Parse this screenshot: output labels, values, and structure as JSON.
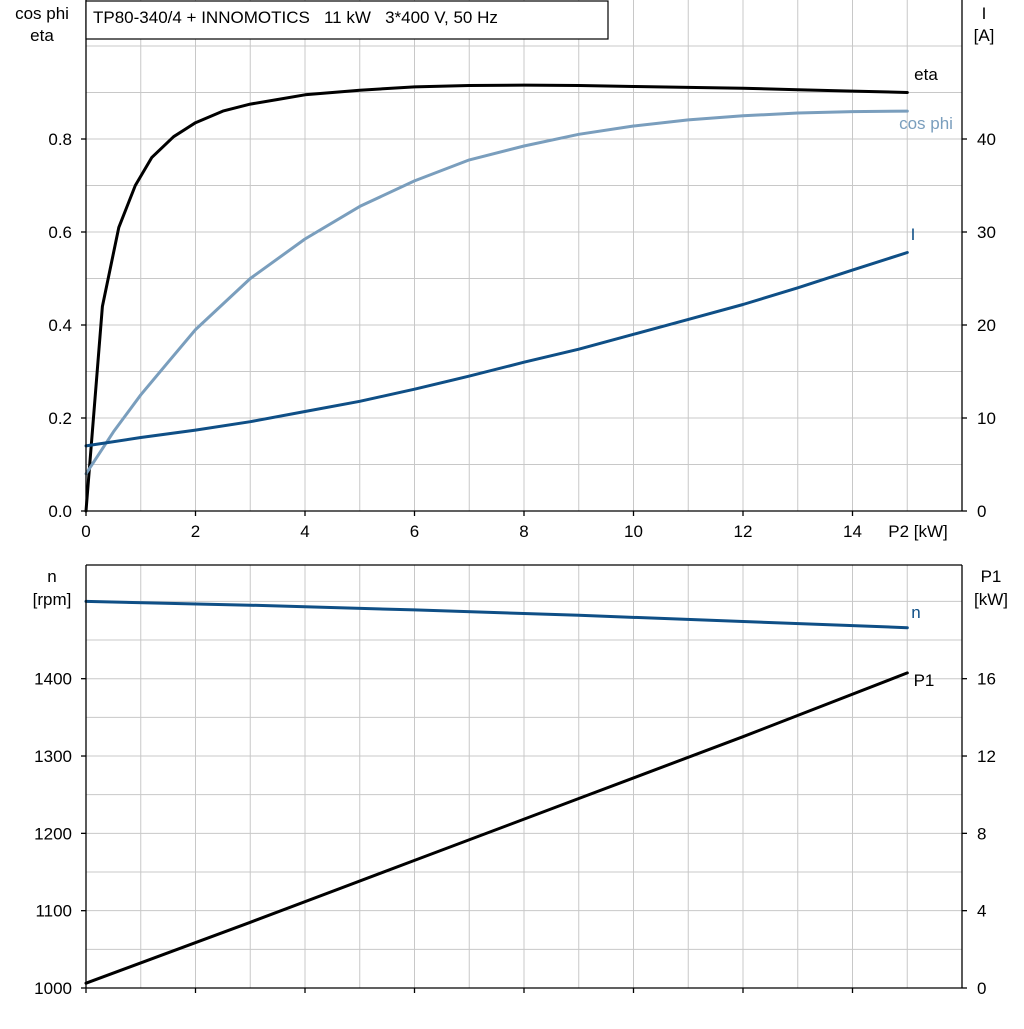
{
  "colors": {
    "eta": "#000000",
    "cos_phi": "#7a9ebd",
    "current": "#0f4f86",
    "speed": "#0f4f86",
    "p1": "#000000",
    "grid": "#c8c8c8"
  },
  "chart_data": [
    {
      "type": "line",
      "title": "TP80-340/4 + INNOMOTICS   11 kW   3*400 V, 50 Hz",
      "xlabel": "P2 [kW]",
      "ylabel_left": [
        "cos phi",
        "eta"
      ],
      "ylabel_right": [
        "I",
        "[A]"
      ],
      "xlim": [
        0,
        16
      ],
      "ylim_left": [
        0,
        1.0
      ],
      "ylim_right": [
        0,
        50
      ],
      "x_ticks": [
        0,
        2,
        4,
        6,
        8,
        10,
        12,
        14
      ],
      "x_tick_labels": [
        "0",
        "2",
        "4",
        "6",
        "8",
        "10",
        "12",
        "14"
      ],
      "y_left_ticks": [
        0.0,
        0.2,
        0.4,
        0.6,
        0.8
      ],
      "y_left_tick_labels": [
        "0.0",
        "0.2",
        "0.4",
        "0.6",
        "0.8"
      ],
      "y_right_ticks": [
        0,
        10,
        20,
        30,
        40
      ],
      "y_right_tick_labels": [
        "0",
        "10",
        "20",
        "30",
        "40"
      ],
      "grid": true,
      "series": [
        {
          "name": "eta",
          "axis": "left",
          "x": [
            0,
            0.3,
            0.6,
            0.9,
            1.2,
            1.6,
            2.0,
            2.5,
            3.0,
            3.5,
            4.0,
            5.0,
            6.0,
            7.0,
            8.0,
            9.0,
            10.0,
            11.0,
            12.0,
            13.0,
            14.0,
            15.0
          ],
          "y": [
            0,
            0.44,
            0.61,
            0.7,
            0.76,
            0.805,
            0.835,
            0.86,
            0.875,
            0.885,
            0.895,
            0.905,
            0.912,
            0.915,
            0.916,
            0.915,
            0.913,
            0.911,
            0.909,
            0.906,
            0.903,
            0.9
          ]
        },
        {
          "name": "cos phi",
          "axis": "left",
          "x": [
            0,
            0.5,
            1,
            1.5,
            2,
            3,
            4,
            5,
            6,
            7,
            8,
            9,
            10,
            11,
            12,
            13,
            14,
            15
          ],
          "y": [
            0.08,
            0.17,
            0.25,
            0.32,
            0.39,
            0.5,
            0.585,
            0.655,
            0.71,
            0.755,
            0.785,
            0.81,
            0.828,
            0.841,
            0.85,
            0.856,
            0.859,
            0.86
          ]
        },
        {
          "name": "I",
          "axis": "right",
          "x": [
            0,
            1,
            2,
            3,
            4,
            5,
            6,
            7,
            8,
            9,
            10,
            11,
            12,
            13,
            14,
            15
          ],
          "y": [
            7.0,
            7.9,
            8.7,
            9.6,
            10.7,
            11.8,
            13.1,
            14.5,
            16.0,
            17.4,
            19.0,
            20.6,
            22.2,
            24.0,
            25.9,
            27.8
          ]
        }
      ]
    },
    {
      "type": "line",
      "xlabel": "",
      "ylabel_left": [
        "n",
        "[rpm]"
      ],
      "ylabel_right": [
        "P1",
        "[kW]"
      ],
      "xlim": [
        0,
        16
      ],
      "ylim_left": [
        1000,
        1550
      ],
      "ylim_right": [
        0,
        22
      ],
      "x_ticks": [
        0,
        2,
        4,
        6,
        8,
        10,
        12,
        14
      ],
      "y_left_ticks": [
        1000,
        1100,
        1200,
        1300,
        1400
      ],
      "y_left_tick_labels": [
        "1000",
        "1100",
        "1200",
        "1300",
        "1400"
      ],
      "y_right_ticks": [
        0,
        4,
        8,
        12,
        16
      ],
      "y_right_tick_labels": [
        "0",
        "4",
        "8",
        "12",
        "16"
      ],
      "grid": true,
      "series": [
        {
          "name": "n",
          "axis": "left",
          "x": [
            0,
            3,
            6,
            9,
            12,
            15
          ],
          "y": [
            1500,
            1495,
            1489,
            1482,
            1474,
            1466
          ]
        },
        {
          "name": "P1",
          "axis": "right",
          "x": [
            0,
            3,
            6,
            9,
            12,
            15
          ],
          "y": [
            0.25,
            3.4,
            6.6,
            9.8,
            13.0,
            16.3
          ]
        }
      ]
    }
  ]
}
